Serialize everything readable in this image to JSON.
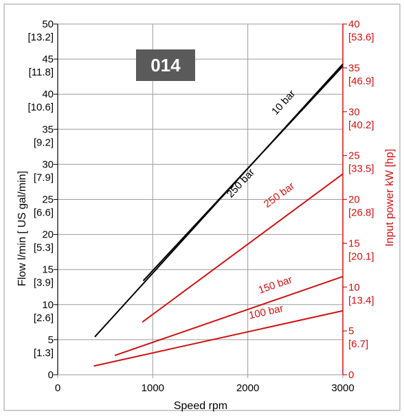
{
  "chart_data": {
    "type": "line",
    "badge": "014",
    "title": "",
    "xlabel": "Speed rpm",
    "ylabel": "Flow l/min [ US gal/min]",
    "y2label": "Input power kW [hp]",
    "xlim": [
      0,
      3000
    ],
    "ylim": [
      0,
      50
    ],
    "y2lim": [
      0,
      40
    ],
    "grid": true,
    "colors": {
      "flow": "#000000",
      "power": "#cc1111",
      "frame": "#999999",
      "grid": "#9a9a9a",
      "badge_bg": "#5a5a5a",
      "badge_fg": "#ffffff"
    },
    "x_ticks": [
      "0",
      "1000",
      "2000",
      "3000"
    ],
    "x_tick_values": [
      0,
      1000,
      2000,
      3000
    ],
    "y_ticks": [
      {
        "value": 0,
        "label": "0",
        "sub": ""
      },
      {
        "value": 5,
        "label": "5",
        "sub": "[1.3]"
      },
      {
        "value": 10,
        "label": "10",
        "sub": "[2.6]"
      },
      {
        "value": 15,
        "label": "15",
        "sub": "[3.9]"
      },
      {
        "value": 20,
        "label": "20",
        "sub": "[5.3]"
      },
      {
        "value": 25,
        "label": "25",
        "sub": "[6.6]"
      },
      {
        "value": 30,
        "label": "30",
        "sub": "[7.9]"
      },
      {
        "value": 35,
        "label": "35",
        "sub": "[9.2]"
      },
      {
        "value": 40,
        "label": "40",
        "sub": "[10.6]"
      },
      {
        "value": 45,
        "label": "45",
        "sub": "[11.8]"
      },
      {
        "value": 50,
        "label": "50",
        "sub": "[13.2]"
      }
    ],
    "y2_ticks": [
      {
        "value": 0,
        "label": "0",
        "sub": ""
      },
      {
        "value": 5,
        "label": "5",
        "sub": "[6.7]"
      },
      {
        "value": 10,
        "label": "10",
        "sub": "[13.4]"
      },
      {
        "value": 15,
        "label": "15",
        "sub": "[20.1]"
      },
      {
        "value": 20,
        "label": "20",
        "sub": "[26.8]"
      },
      {
        "value": 25,
        "label": "25",
        "sub": "[33.5]"
      },
      {
        "value": 30,
        "label": "30",
        "sub": "[40.2]"
      },
      {
        "value": 35,
        "label": "35",
        "sub": "[46.9]"
      },
      {
        "value": 40,
        "label": "40",
        "sub": "[53.6]"
      }
    ],
    "series": [
      {
        "name": "10 bar",
        "axis": "left",
        "color_key": "flow",
        "x": [
          390,
          3000
        ],
        "y": [
          5.4,
          44.3
        ],
        "label_x": 2400,
        "label_y": 38.5
      },
      {
        "name": "250 bar",
        "axis": "left",
        "color_key": "flow",
        "x": [
          900,
          3000
        ],
        "y": [
          13.4,
          44.0
        ],
        "label_x": 1950,
        "label_y": 27.0
      },
      {
        "name": "250 bar",
        "axis": "right",
        "color_key": "power",
        "x": [
          890,
          3000
        ],
        "y": [
          6.0,
          22.9
        ],
        "label_x": 2350,
        "label_y": 20.2
      },
      {
        "name": "150 bar",
        "axis": "right",
        "color_key": "power",
        "x": [
          600,
          3000
        ],
        "y": [
          2.2,
          11.2
        ],
        "label_x": 2300,
        "label_y": 9.9
      },
      {
        "name": "100 bar",
        "axis": "right",
        "color_key": "power",
        "x": [
          380,
          3000
        ],
        "y": [
          1.0,
          7.3
        ],
        "label_x": 2200,
        "label_y": 6.8
      }
    ]
  }
}
